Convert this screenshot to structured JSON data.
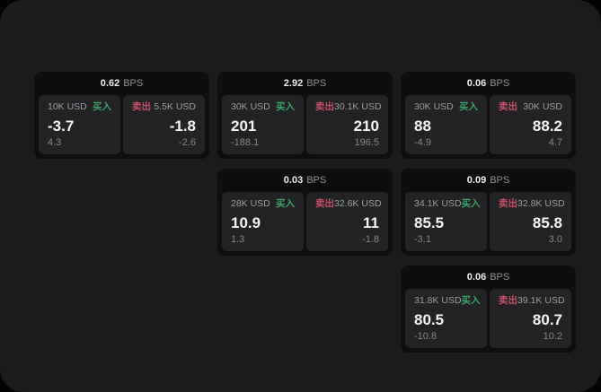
{
  "colors": {
    "background": "#040404",
    "panel": "#1b1b1c",
    "card": "#0e0e10",
    "side_panel": "#232326",
    "buy_accent": "#3da367",
    "sell_accent": "#c25068",
    "primary_text": "#f4f4f5",
    "muted_text": "#9d9da1"
  },
  "cards": [
    {
      "bps_value": "0.62",
      "bps_unit": "BPS",
      "buy": {
        "amount": "10K USD",
        "side_label": "买入",
        "value": "-3.7",
        "sub": "4.3"
      },
      "sell": {
        "side_label": "卖出",
        "amount": "5.5K USD",
        "value": "-1.8",
        "sub": "-2.6"
      }
    },
    {
      "bps_value": "2.92",
      "bps_unit": "BPS",
      "buy": {
        "amount": "30K USD",
        "side_label": "买入",
        "value": "201",
        "sub": "-188.1"
      },
      "sell": {
        "side_label": "卖出",
        "amount": "30.1K USD",
        "value": "210",
        "sub": "196.5"
      }
    },
    {
      "bps_value": "0.06",
      "bps_unit": "BPS",
      "buy": {
        "amount": "30K USD",
        "side_label": "买入",
        "value": "88",
        "sub": "-4.9"
      },
      "sell": {
        "side_label": "卖出",
        "amount": "30K USD",
        "value": "88.2",
        "sub": "4.7"
      }
    },
    {
      "bps_value": "0.03",
      "bps_unit": "BPS",
      "buy": {
        "amount": "28K USD",
        "side_label": "买入",
        "value": "10.9",
        "sub": "1.3"
      },
      "sell": {
        "side_label": "卖出",
        "amount": "32.6K USD",
        "value": "11",
        "sub": "-1.8"
      }
    },
    {
      "bps_value": "0.09",
      "bps_unit": "BPS",
      "buy": {
        "amount": "34.1K USD",
        "side_label": "买入",
        "value": "85.5",
        "sub": "-3.1"
      },
      "sell": {
        "side_label": "卖出",
        "amount": "32.8K USD",
        "value": "85.8",
        "sub": "3.0"
      }
    },
    {
      "bps_value": "0.06",
      "bps_unit": "BPS",
      "buy": {
        "amount": "31.8K USD",
        "side_label": "买入",
        "value": "80.5",
        "sub": "-10.8"
      },
      "sell": {
        "side_label": "卖出",
        "amount": "39.1K USD",
        "value": "80.7",
        "sub": "10.2"
      }
    }
  ]
}
